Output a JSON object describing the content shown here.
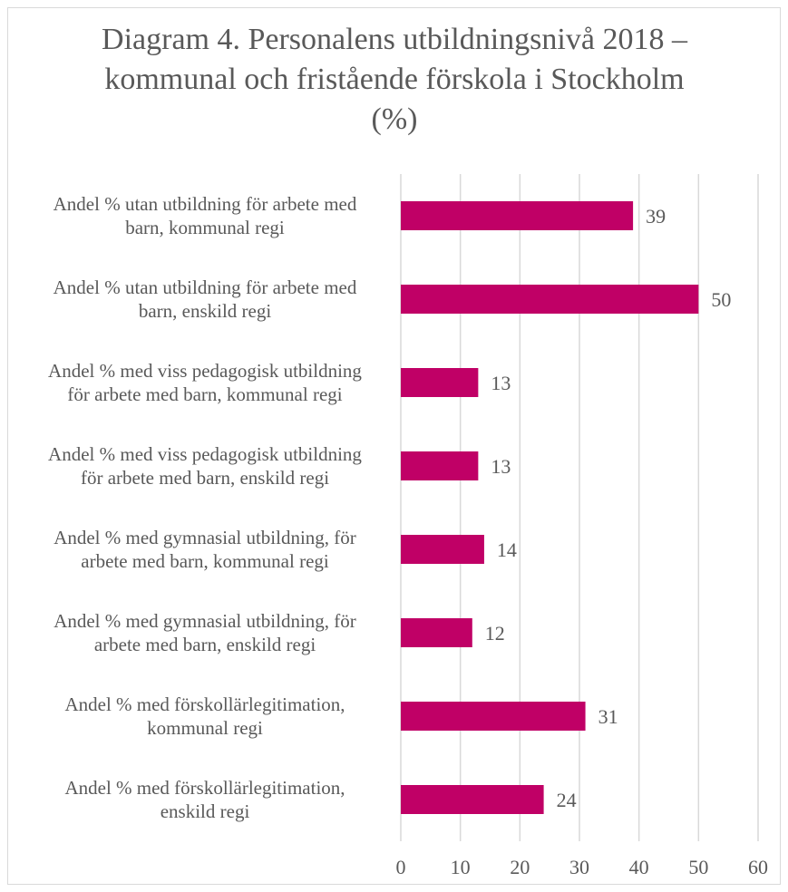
{
  "chart_data": {
    "type": "bar",
    "orientation": "horizontal",
    "title": "Diagram 4. Personalens utbildningsnivå 2018 – kommunal och fristående förskola i Stockholm (%)",
    "categories": [
      [
        "Andel % utan utbildning för arbete med",
        "barn, kommunal regi"
      ],
      [
        "Andel % utan utbildning för arbete med",
        "barn, enskild regi"
      ],
      [
        "Andel % med viss pedagogisk utbildning",
        "för arbete med barn, kommunal regi"
      ],
      [
        "Andel % med viss pedagogisk utbildning",
        "för arbete med barn, enskild regi"
      ],
      [
        "Andel % med  gymnasial utbildning, för",
        "arbete med barn, kommunal regi"
      ],
      [
        "Andel % med gymnasial utbildning, för",
        "arbete med barn, enskild regi"
      ],
      [
        "Andel % med förskollärlegitimation,",
        "kommunal regi"
      ],
      [
        "Andel % med förskollärlegitimation,",
        "enskild regi"
      ]
    ],
    "values": [
      39,
      50,
      13,
      13,
      14,
      12,
      31,
      24
    ],
    "xlim": [
      0,
      60
    ],
    "xticks": [
      0,
      10,
      20,
      30,
      40,
      50,
      60
    ],
    "grid": true,
    "legend": "none",
    "bar_color": "#c00066",
    "grid_color": "#d9d9d9",
    "text_color": "#595959"
  }
}
